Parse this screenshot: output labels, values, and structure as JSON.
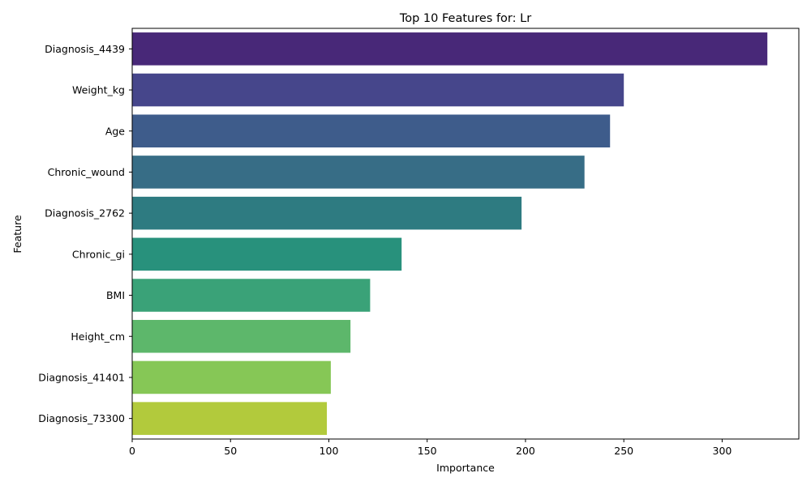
{
  "chart_data": {
    "type": "bar",
    "orientation": "horizontal",
    "title": "Top 10 Features for: Lr",
    "xlabel": "Importance",
    "ylabel": "Feature",
    "xlim": [
      0,
      339
    ],
    "xticks": [
      0,
      50,
      100,
      150,
      200,
      250,
      300
    ],
    "grid": false,
    "categories": [
      "Diagnosis_4439",
      "Weight_kg",
      "Age",
      "Chronic_wound",
      "Diagnosis_2762",
      "Chronic_gi",
      "BMI",
      "Height_cm",
      "Diagnosis_41401",
      "Diagnosis_73300"
    ],
    "values": [
      323,
      250,
      243,
      230,
      198,
      137,
      121,
      111,
      101,
      99
    ],
    "colors": [
      "#482878",
      "#46468b",
      "#3e5c8b",
      "#376d86",
      "#2e7b81",
      "#28917c",
      "#3aa278",
      "#5db76b",
      "#86c756",
      "#b2ca3c"
    ]
  }
}
